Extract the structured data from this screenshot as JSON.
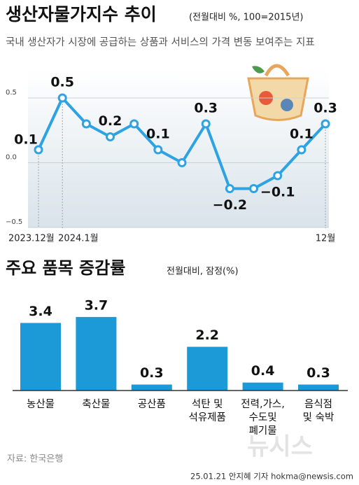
{
  "chart_data": [
    {
      "type": "line",
      "title": "생산자물가지수 추이",
      "subtitle": "(전월대비 %, 100=2015년)",
      "description": "국내 생산자가 시장에 공급하는 상품과 서비스의 가격 변동 보여주는 지표",
      "categories": [
        "2023.12월",
        "2024.1월",
        null,
        null,
        null,
        null,
        null,
        null,
        null,
        null,
        null,
        null,
        "12월"
      ],
      "values": [
        0.1,
        0.5,
        0.3,
        0.2,
        0.3,
        0.1,
        0.0,
        0.3,
        -0.2,
        -0.2,
        -0.1,
        0.1,
        0.3
      ],
      "value_labels": [
        "0.1",
        "0.5",
        null,
        "0.2",
        null,
        "0.1",
        null,
        "0.3",
        "−0.2",
        null,
        "−0.1",
        "0.1",
        "0.3"
      ],
      "color": "#2ea3e3",
      "ylim": [
        -0.5,
        0.5
      ],
      "yticks": [
        {
          "value": -0.5,
          "label": "−0.5"
        },
        {
          "value": 0,
          "label": "0.0"
        },
        0.5
      ],
      "grid": true
    },
    {
      "type": "bar",
      "title": "주요 품목 증감률",
      "subtitle": "전월대비, 잠정(%)",
      "categories": [
        "농산물",
        "축산물",
        "공산품",
        "석탄 및\n석유제품",
        "전력,가스,\n수도및\n폐기물",
        "음식점\n및 숙박"
      ],
      "values": [
        3.4,
        3.7,
        0.3,
        2.2,
        0.4,
        0.3
      ],
      "color": "#1b9ad7"
    }
  ],
  "source": "자료: 한국은행",
  "credit": "25.01.21 안지혜 기자 hokma@newsis.com",
  "watermark": "뉴시스"
}
